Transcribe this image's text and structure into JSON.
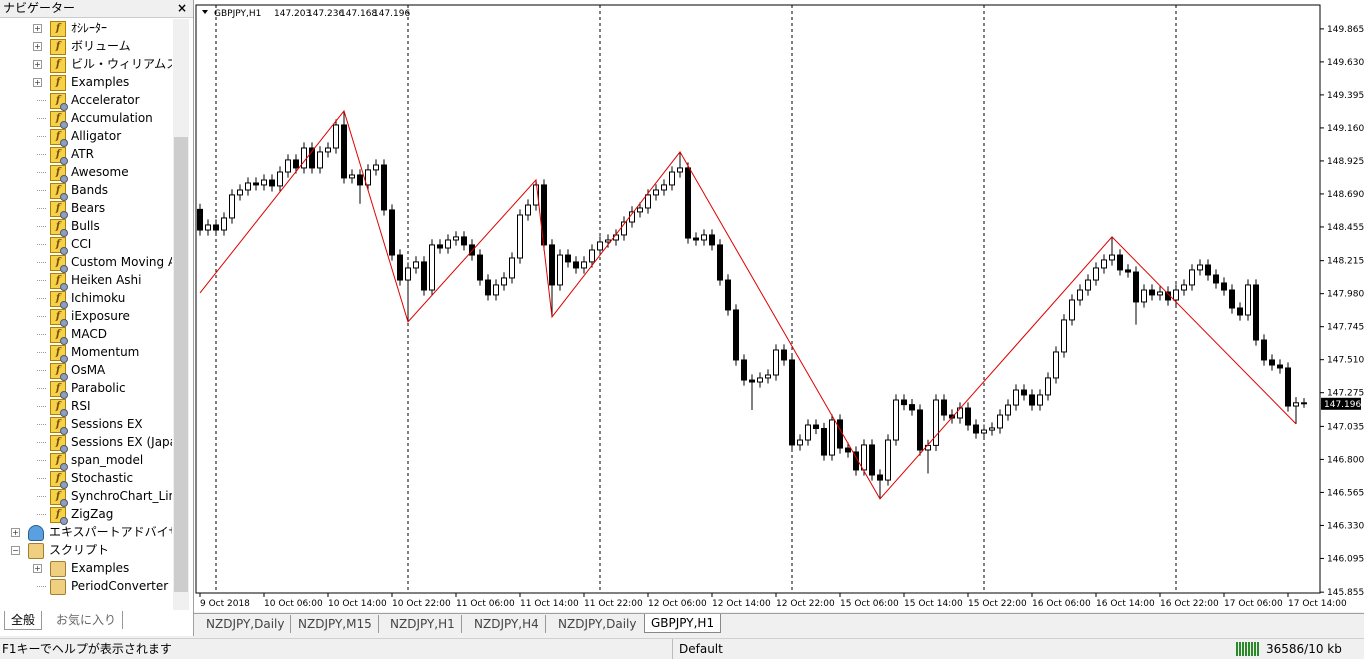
{
  "navigator": {
    "title": "ナビゲーター",
    "close": "×",
    "items": [
      {
        "label": "ｵｼﾚｰﾀｰ",
        "level": 1,
        "icon": "folder",
        "expander": "plus"
      },
      {
        "label": "ボリューム",
        "level": 1,
        "icon": "folder",
        "expander": "plus"
      },
      {
        "label": "ビル・ウィリアムス",
        "level": 1,
        "icon": "folder",
        "expander": "plus"
      },
      {
        "label": "Examples",
        "level": 1,
        "icon": "folder",
        "expander": "plus"
      },
      {
        "label": "Accelerator",
        "level": 1,
        "icon": "ind"
      },
      {
        "label": "Accumulation",
        "level": 1,
        "icon": "ind"
      },
      {
        "label": "Alligator",
        "level": 1,
        "icon": "ind"
      },
      {
        "label": "ATR",
        "level": 1,
        "icon": "ind"
      },
      {
        "label": "Awesome",
        "level": 1,
        "icon": "ind"
      },
      {
        "label": "Bands",
        "level": 1,
        "icon": "ind"
      },
      {
        "label": "Bears",
        "level": 1,
        "icon": "ind"
      },
      {
        "label": "Bulls",
        "level": 1,
        "icon": "ind"
      },
      {
        "label": "CCI",
        "level": 1,
        "icon": "ind"
      },
      {
        "label": "Custom Moving Av",
        "level": 1,
        "icon": "ind"
      },
      {
        "label": "Heiken Ashi",
        "level": 1,
        "icon": "ind"
      },
      {
        "label": "Ichimoku",
        "level": 1,
        "icon": "ind"
      },
      {
        "label": "iExposure",
        "level": 1,
        "icon": "ind"
      },
      {
        "label": "MACD",
        "level": 1,
        "icon": "ind"
      },
      {
        "label": "Momentum",
        "level": 1,
        "icon": "ind"
      },
      {
        "label": "OsMA",
        "level": 1,
        "icon": "ind"
      },
      {
        "label": "Parabolic",
        "level": 1,
        "icon": "ind"
      },
      {
        "label": "RSI",
        "level": 1,
        "icon": "ind"
      },
      {
        "label": "Sessions EX",
        "level": 1,
        "icon": "ind"
      },
      {
        "label": "Sessions EX (Japane",
        "level": 1,
        "icon": "ind"
      },
      {
        "label": "span_model",
        "level": 1,
        "icon": "ind"
      },
      {
        "label": "Stochastic",
        "level": 1,
        "icon": "ind"
      },
      {
        "label": "SynchroChart_Line",
        "level": 1,
        "icon": "ind"
      },
      {
        "label": "ZigZag",
        "level": 1,
        "icon": "ind"
      },
      {
        "label": "エキスパートアドバイザ",
        "level": 0,
        "icon": "expert",
        "expander": "plus"
      },
      {
        "label": "スクリプト",
        "level": 0,
        "icon": "script",
        "expander": "minus"
      },
      {
        "label": "Examples",
        "level": 1,
        "icon": "script",
        "expander": "plus"
      },
      {
        "label": "PeriodConverter",
        "level": 1,
        "icon": "script"
      }
    ],
    "tabs": [
      "全般",
      "お気に入り"
    ]
  },
  "symbol_tabs": [
    "NZDJPY,Daily",
    "NZDJPY,M15",
    "NZDJPY,H1",
    "NZDJPY,H4",
    "NZDJPY,Daily",
    "GBPJPY,H1"
  ],
  "active_tab": 5,
  "status_bar": {
    "help": "F1キーでヘルプが表示されます",
    "profile": "Default",
    "traffic": "36586/10 kb"
  },
  "chart_data": {
    "type": "candlestick",
    "title": "GBPJPY,H1",
    "xlim": [
      -0.5,
      140
    ],
    "ylim": [
      145.849,
      150.035
    ],
    "xticks": [
      {
        "value": 0,
        "label": "9 Oct 2018"
      },
      {
        "value": 8,
        "label": "10 Oct 06:00"
      },
      {
        "value": 16,
        "label": "10 Oct 14:00"
      },
      {
        "value": 24,
        "label": "10 Oct 22:00"
      },
      {
        "value": 32,
        "label": "11 Oct 06:00"
      },
      {
        "value": 40,
        "label": "11 Oct 14:00"
      },
      {
        "value": 48,
        "label": "11 Oct 22:00"
      },
      {
        "value": 56,
        "label": "12 Oct 06:00"
      },
      {
        "value": 64,
        "label": "12 Oct 14:00"
      },
      {
        "value": 72,
        "label": "12 Oct 22:00"
      },
      {
        "value": 80,
        "label": "15 Oct 06:00"
      },
      {
        "value": 88,
        "label": "15 Oct 14:00"
      },
      {
        "value": 96,
        "label": "15 Oct 22:00"
      },
      {
        "value": 104,
        "label": "16 Oct 06:00"
      },
      {
        "value": 112,
        "label": "16 Oct 14:00"
      },
      {
        "value": 120,
        "label": "16 Oct 22:00"
      },
      {
        "value": 128,
        "label": "17 Oct 06:00"
      },
      {
        "value": 136,
        "label": "17 Oct 14:00"
      }
    ],
    "yticks": [
      149.865,
      {
        "value": 149.63,
        "label": "149.630"
      },
      149.395,
      {
        "value": 149.16,
        "label": "149.160"
      },
      148.925,
      {
        "value": 148.69,
        "label": "148.690"
      },
      148.455,
      148.215,
      {
        "value": 147.98,
        "label": "147.980"
      },
      147.745,
      {
        "value": 147.51,
        "label": "147.510"
      },
      147.275,
      147.035,
      {
        "value": 146.8,
        "label": "146.800"
      },
      146.565,
      {
        "value": 146.33,
        "label": "146.330"
      },
      146.095,
      145.855
    ],
    "period_separators": [
      2,
      26,
      50,
      74,
      98,
      122
    ],
    "up_color": "#ffffff",
    "down_color": "#000000",
    "outline_color": "#000000",
    "open": [
      148.58,
      148.433,
      148.469,
      148.433,
      148.519,
      148.683,
      148.718,
      148.768,
      148.754,
      148.789,
      148.747,
      148.846,
      148.932,
      148.875,
      149.017,
      148.875,
      148.989,
      149.017,
      149.181,
      148.804,
      148.825,
      148.754,
      148.861,
      148.896,
      148.576,
      148.255,
      148.077,
      148.163,
      148.206,
      148.006,
      148.327,
      148.305,
      148.362,
      148.384,
      148.327,
      148.255,
      148.077,
      147.971,
      148.042,
      148.092,
      148.234,
      148.54,
      148.611,
      148.754,
      148.327,
      148.042,
      148.255,
      148.206,
      148.163,
      148.206,
      148.291,
      148.348,
      148.362,
      148.398,
      148.49,
      148.562,
      148.59,
      148.683,
      148.718,
      148.754,
      148.846,
      148.875,
      148.376,
      148.362,
      148.398,
      148.327,
      148.077,
      147.864,
      147.508,
      147.365,
      147.351,
      147.38,
      147.401,
      147.579,
      147.508,
      146.903,
      146.938,
      147.045,
      147.02,
      146.831,
      147.081,
      146.881,
      146.853,
      146.725,
      146.903,
      146.689,
      146.653,
      146.938,
      147.223,
      147.19,
      147.152,
      146.867,
      146.9,
      147.223,
      147.116,
      147.095,
      147.166,
      147.045,
      146.988,
      147.009,
      147.024,
      147.116,
      147.187,
      147.294,
      147.259,
      147.187,
      147.259,
      147.38,
      147.565,
      147.793,
      147.935,
      148.006,
      148.077,
      148.163,
      148.22,
      148.255,
      148.149,
      148.134,
      147.921,
      148.006,
      147.971,
      147.992,
      147.935,
      148.006,
      148.042,
      148.149,
      148.184,
      148.113,
      148.056,
      148.006,
      147.878,
      147.828,
      148.042,
      147.65,
      147.508,
      147.472,
      147.451,
      147.18,
      147.203
    ],
    "high": [
      148.62,
      148.509,
      148.509,
      148.559,
      148.723,
      148.758,
      148.808,
      148.808,
      148.829,
      148.829,
      148.886,
      148.972,
      148.972,
      149.057,
      149.057,
      149.029,
      149.057,
      149.221,
      149.281,
      148.865,
      148.865,
      148.901,
      148.936,
      148.936,
      148.616,
      148.295,
      148.203,
      148.246,
      148.246,
      148.367,
      148.367,
      148.402,
      148.424,
      148.424,
      148.367,
      148.295,
      148.117,
      148.082,
      148.132,
      148.274,
      148.58,
      148.651,
      148.79,
      148.794,
      148.367,
      148.295,
      148.295,
      148.246,
      148.246,
      148.331,
      148.388,
      148.402,
      148.438,
      148.53,
      148.602,
      148.63,
      148.723,
      148.758,
      148.794,
      148.886,
      148.989,
      148.915,
      148.416,
      148.438,
      148.438,
      148.367,
      148.117,
      147.904,
      147.548,
      147.405,
      147.42,
      147.441,
      147.619,
      147.619,
      147.548,
      146.978,
      147.085,
      147.085,
      147.06,
      147.121,
      147.121,
      146.921,
      146.893,
      146.943,
      146.943,
      146.729,
      146.978,
      147.263,
      147.263,
      147.23,
      147.192,
      146.94,
      147.263,
      147.263,
      147.156,
      147.206,
      147.206,
      147.085,
      147.049,
      147.064,
      147.156,
      147.227,
      147.334,
      147.334,
      147.299,
      147.299,
      147.42,
      147.605,
      147.833,
      147.975,
      148.046,
      148.117,
      148.203,
      148.26,
      148.384,
      148.295,
      148.189,
      148.174,
      148.046,
      148.046,
      148.032,
      148.032,
      148.046,
      148.082,
      148.189,
      148.224,
      148.224,
      148.153,
      148.096,
      148.046,
      147.918,
      148.082,
      148.082,
      147.69,
      147.548,
      147.512,
      147.491,
      147.243,
      147.236
    ],
    "low": [
      148.393,
      148.393,
      148.393,
      148.393,
      148.479,
      148.643,
      148.678,
      148.714,
      148.714,
      148.707,
      148.707,
      148.806,
      148.835,
      148.835,
      148.835,
      148.835,
      148.949,
      148.977,
      148.764,
      148.764,
      148.62,
      148.714,
      148.821,
      148.536,
      148.215,
      148.037,
      147.779,
      148.123,
      147.966,
      147.966,
      148.265,
      148.265,
      148.322,
      148.287,
      148.215,
      148.037,
      147.931,
      147.931,
      148.002,
      148.052,
      148.194,
      148.5,
      148.571,
      148.287,
      147.814,
      148.002,
      148.166,
      148.123,
      148.123,
      148.166,
      148.251,
      148.308,
      148.322,
      148.358,
      148.45,
      148.522,
      148.55,
      148.643,
      148.678,
      148.714,
      148.806,
      148.336,
      148.322,
      148.322,
      148.287,
      148.037,
      147.824,
      147.468,
      147.325,
      147.152,
      147.311,
      147.34,
      147.361,
      147.468,
      146.863,
      146.863,
      146.898,
      146.98,
      146.791,
      146.791,
      146.841,
      146.813,
      146.685,
      146.685,
      146.649,
      146.519,
      146.613,
      146.898,
      147.15,
      147.112,
      146.827,
      146.7,
      146.86,
      147.076,
      147.055,
      147.055,
      147.005,
      146.948,
      146.948,
      146.969,
      146.984,
      147.076,
      147.147,
      147.219,
      147.147,
      147.147,
      147.219,
      147.34,
      147.525,
      147.753,
      147.895,
      147.966,
      148.037,
      148.123,
      148.18,
      148.109,
      148.094,
      147.76,
      147.881,
      147.931,
      147.931,
      147.895,
      147.895,
      147.966,
      148.002,
      148.109,
      148.073,
      148.016,
      147.966,
      147.838,
      147.788,
      147.788,
      147.61,
      147.468,
      147.432,
      147.411,
      147.14,
      147.053,
      147.168
    ],
    "close": [
      148.433,
      148.469,
      148.433,
      148.519,
      148.683,
      148.718,
      148.768,
      148.754,
      148.789,
      148.747,
      148.846,
      148.932,
      148.875,
      149.017,
      148.875,
      148.989,
      149.017,
      149.181,
      148.804,
      148.825,
      148.754,
      148.861,
      148.896,
      148.576,
      148.255,
      148.077,
      148.163,
      148.206,
      148.006,
      148.327,
      148.305,
      148.362,
      148.384,
      148.327,
      148.255,
      148.077,
      147.971,
      148.042,
      148.092,
      148.234,
      148.54,
      148.611,
      148.754,
      148.327,
      148.042,
      148.255,
      148.206,
      148.163,
      148.206,
      148.291,
      148.348,
      148.362,
      148.398,
      148.49,
      148.562,
      148.59,
      148.683,
      148.718,
      148.754,
      148.846,
      148.875,
      148.376,
      148.362,
      148.398,
      148.327,
      148.077,
      147.864,
      147.508,
      147.365,
      147.351,
      147.38,
      147.401,
      147.579,
      147.508,
      146.903,
      146.938,
      147.045,
      147.02,
      146.831,
      147.081,
      146.881,
      146.853,
      146.725,
      146.903,
      146.689,
      146.653,
      146.938,
      147.223,
      147.19,
      147.152,
      146.867,
      146.9,
      147.223,
      147.116,
      147.095,
      147.166,
      147.045,
      146.988,
      147.009,
      147.024,
      147.116,
      147.187,
      147.294,
      147.259,
      147.187,
      147.259,
      147.38,
      147.565,
      147.793,
      147.935,
      148.006,
      148.077,
      148.163,
      148.22,
      148.255,
      148.149,
      148.134,
      147.921,
      148.006,
      147.971,
      147.992,
      147.935,
      148.006,
      148.042,
      148.149,
      148.184,
      148.113,
      148.056,
      148.006,
      147.878,
      147.828,
      148.042,
      147.65,
      147.508,
      147.472,
      147.451,
      147.18,
      147.203,
      147.196
    ],
    "zigzag": {
      "color": "#e00000",
      "x": [
        0,
        18,
        26,
        42,
        44,
        60,
        85,
        114,
        137
      ],
      "values": [
        147.985,
        149.281,
        147.779,
        148.79,
        147.814,
        148.989,
        146.519,
        148.384,
        147.053
      ]
    }
  }
}
